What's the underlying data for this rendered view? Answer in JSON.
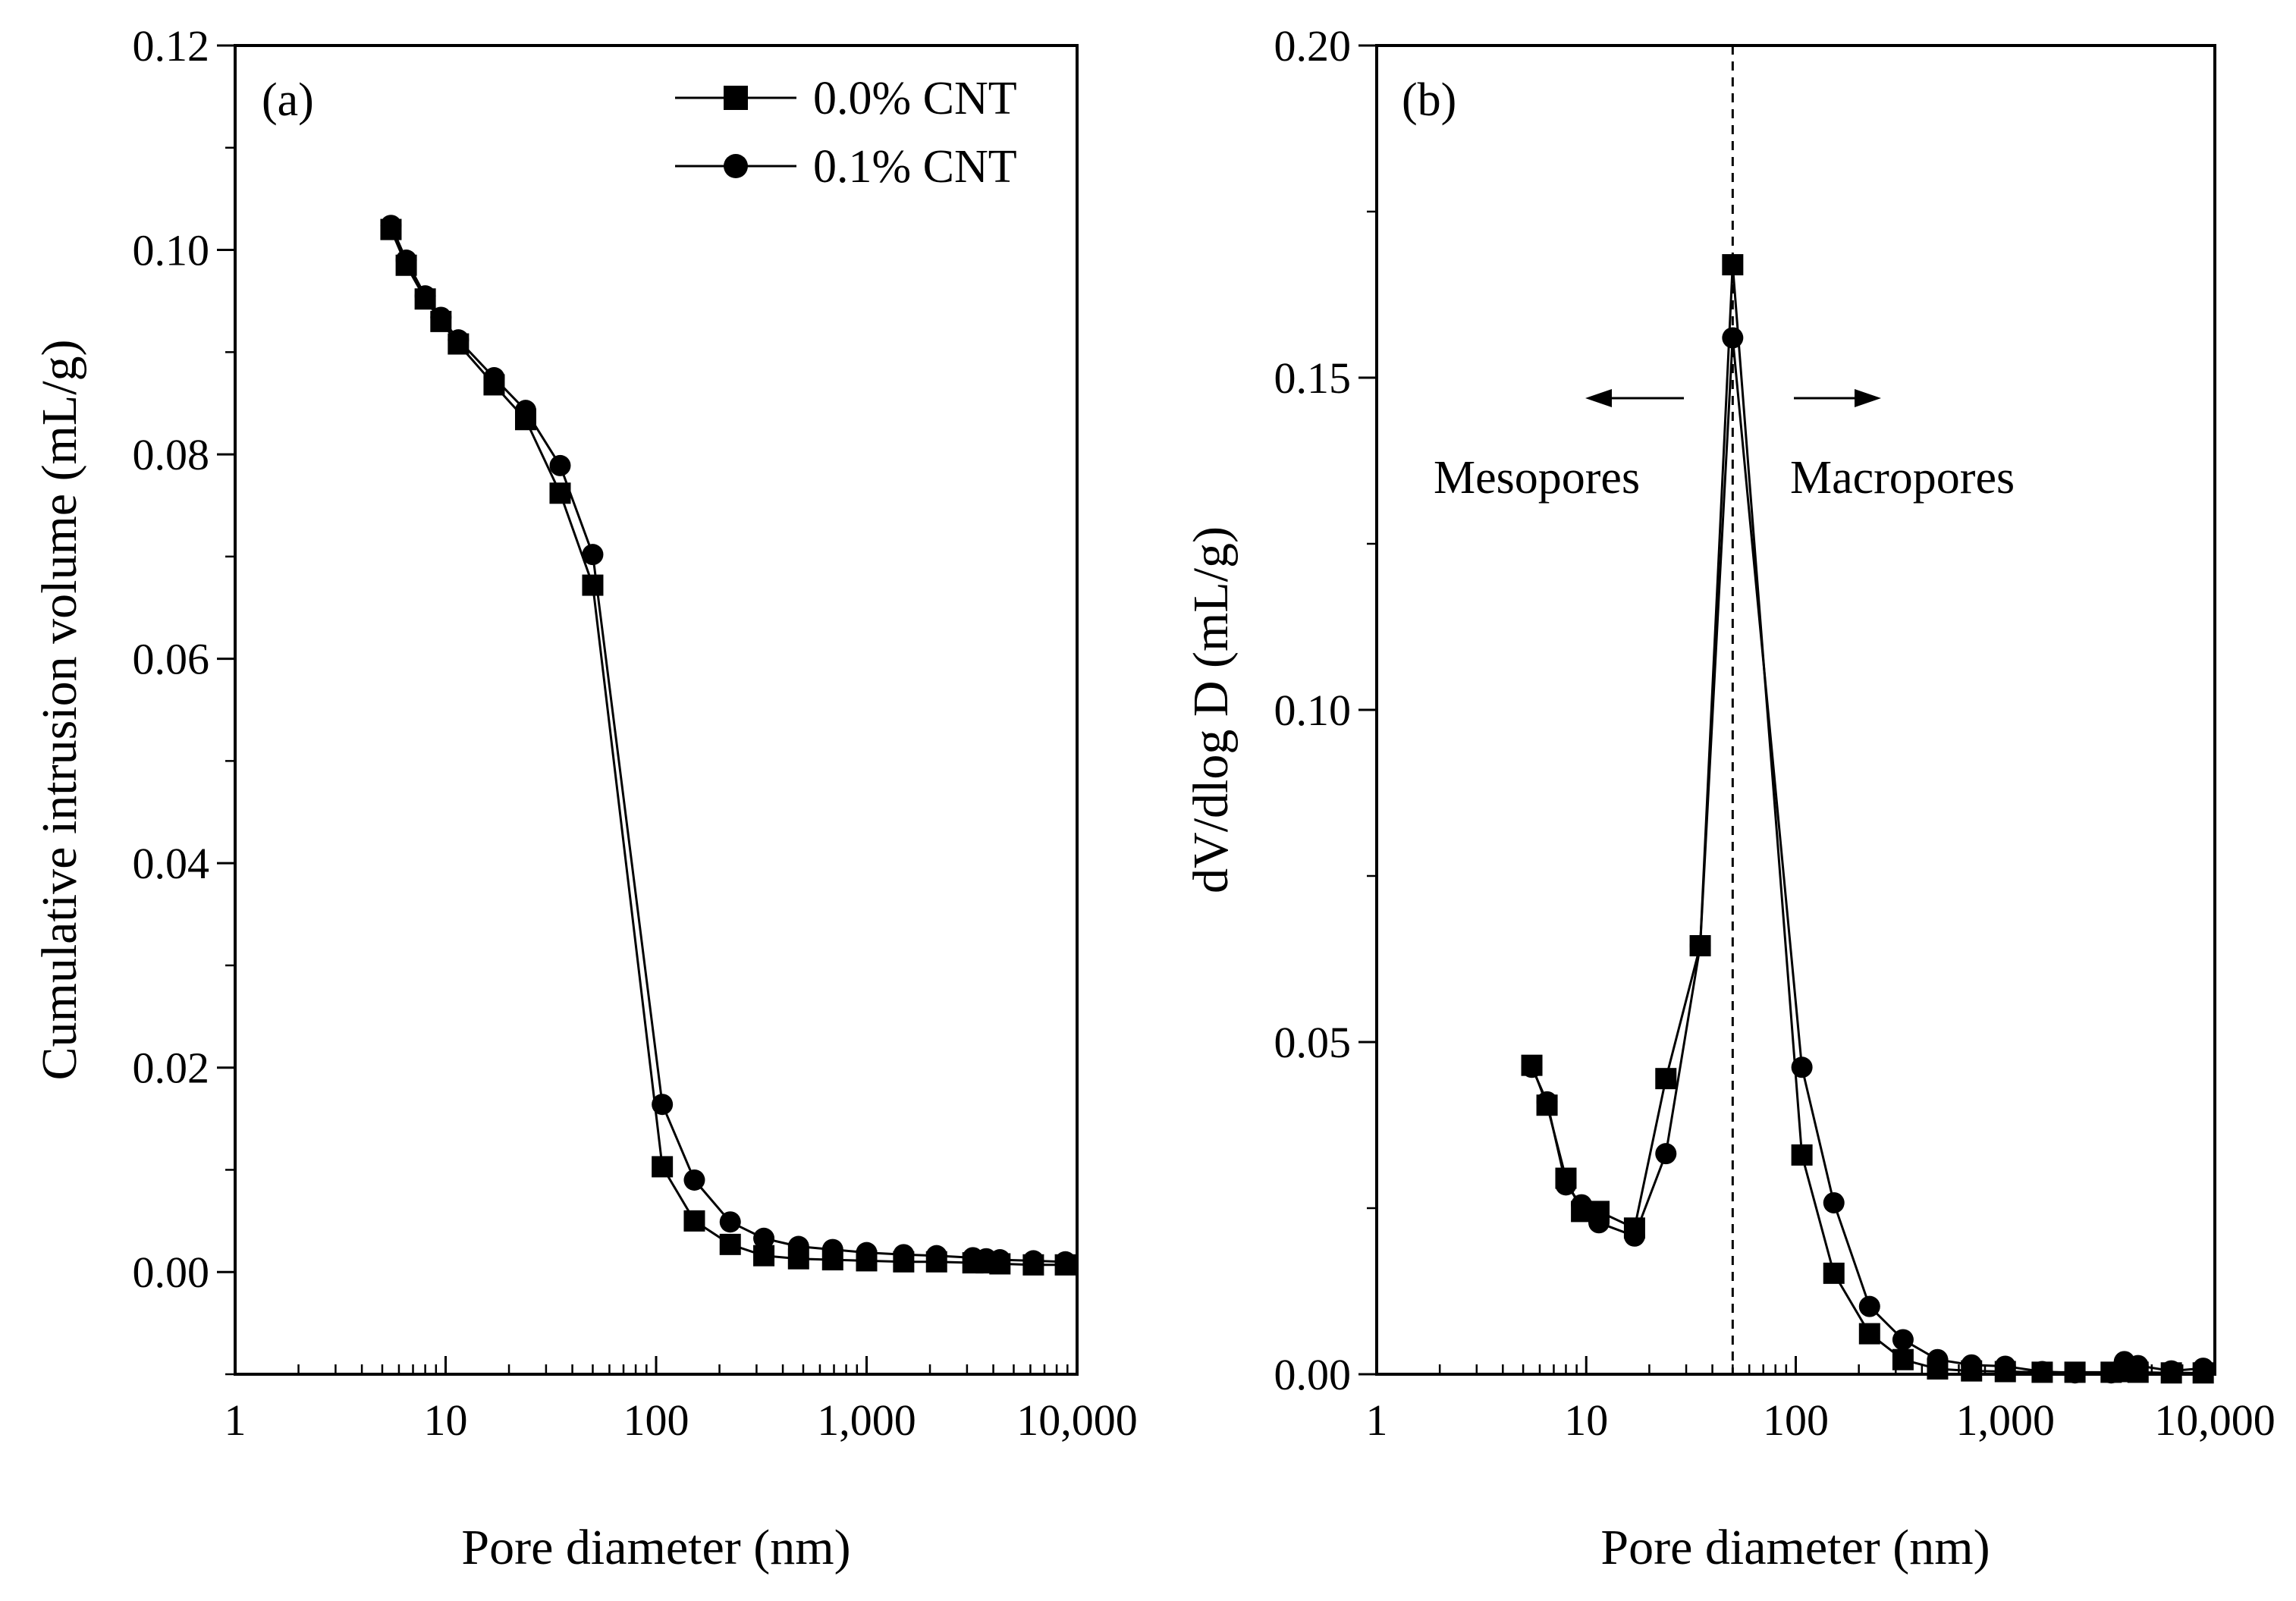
{
  "chart_data": [
    {
      "type": "line",
      "panel": "(a)",
      "xlabel": "Pore diameter (nm)",
      "ylabel": "Cumulative intrusion volume (mL/g)",
      "xscale": "log",
      "xlim": [
        1,
        10000
      ],
      "ylim": [
        -0.01,
        0.12
      ],
      "xticks": [
        1,
        10,
        100,
        1000,
        10000
      ],
      "xtick_labels": [
        "1",
        "10",
        "100",
        "1,000",
        "10,000"
      ],
      "yticks": [
        0.0,
        0.02,
        0.04,
        0.06,
        0.08,
        0.1,
        0.12
      ],
      "ytick_labels": [
        "0.00",
        "0.02",
        "0.04",
        "0.06",
        "0.08",
        "0.10",
        "0.12"
      ],
      "legend_position": "top-right",
      "series": [
        {
          "name": "0.0% CNT",
          "marker": "square",
          "x": [
            5.5,
            6.5,
            8,
            9.5,
            11.5,
            17,
            24,
            35,
            50,
            107,
            152,
            225,
            325,
            475,
            690,
            1000,
            1500,
            2150,
            3200,
            3700,
            4300,
            6200,
            8800
          ],
          "y": [
            0.102,
            0.0985,
            0.0952,
            0.093,
            0.0908,
            0.0868,
            0.0834,
            0.0762,
            0.0672,
            0.0103,
            0.005,
            0.0027,
            0.0016,
            0.0013,
            0.0012,
            0.0011,
            0.001,
            0.001,
            0.0009,
            0.0009,
            0.0008,
            0.0007,
            0.0007
          ]
        },
        {
          "name": "0.1% CNT",
          "marker": "circle",
          "x": [
            5.5,
            6.5,
            8,
            9.5,
            11.5,
            17,
            24,
            35,
            50,
            107,
            152,
            225,
            325,
            475,
            690,
            1000,
            1500,
            2150,
            3200,
            3700,
            4300,
            6200,
            8800
          ],
          "y": [
            0.1024,
            0.099,
            0.0955,
            0.0934,
            0.0912,
            0.0875,
            0.0843,
            0.0789,
            0.0702,
            0.0164,
            0.009,
            0.0049,
            0.0033,
            0.0025,
            0.0022,
            0.0019,
            0.0017,
            0.0016,
            0.0014,
            0.0013,
            0.0012,
            0.0011,
            0.001
          ]
        }
      ]
    },
    {
      "type": "line",
      "panel": "(b)",
      "xlabel": "Pore diameter (nm)",
      "ylabel": "dV/dlog D (mL/g)",
      "xscale": "log",
      "xlim": [
        1,
        10000
      ],
      "ylim": [
        0.0,
        0.2
      ],
      "xticks": [
        1,
        10,
        100,
        1000,
        10000
      ],
      "xtick_labels": [
        "1",
        "10",
        "100",
        "1,000",
        "10,000"
      ],
      "yticks": [
        0.0,
        0.05,
        0.1,
        0.15,
        0.2
      ],
      "ytick_labels": [
        "0.00",
        "0.05",
        "0.10",
        "0.15",
        "0.20"
      ],
      "reference_line_x": 50,
      "annotations": [
        {
          "text": "Mesopores",
          "arrow": "left"
        },
        {
          "text": "Macropores",
          "arrow": "right"
        }
      ],
      "series": [
        {
          "name": "0.0% CNT",
          "marker": "square",
          "x": [
            5.5,
            6.5,
            8,
            9.5,
            11.5,
            17,
            24,
            35,
            50,
            107,
            152,
            225,
            325,
            475,
            690,
            1000,
            1500,
            2150,
            3200,
            3700,
            4300,
            6200,
            8800
          ],
          "y": [
            0.0465,
            0.0405,
            0.0295,
            0.0245,
            0.0245,
            0.022,
            0.0445,
            0.0645,
            0.167,
            0.033,
            0.0152,
            0.0061,
            0.0022,
            0.0008,
            0.0005,
            0.0004,
            0.0003,
            0.0003,
            0.0003,
            0.0004,
            0.0003,
            0.0002,
            0.0002
          ]
        },
        {
          "name": "0.1% CNT",
          "marker": "circle",
          "x": [
            5.5,
            6.5,
            8,
            9.5,
            11.5,
            17,
            24,
            35,
            50,
            107,
            152,
            225,
            325,
            475,
            690,
            1000,
            1500,
            2150,
            3200,
            3700,
            4300,
            6200,
            8800
          ],
          "y": [
            0.0462,
            0.041,
            0.0285,
            0.0255,
            0.0228,
            0.0208,
            0.0332,
            0.0645,
            0.156,
            0.0462,
            0.0258,
            0.0102,
            0.0052,
            0.0022,
            0.0014,
            0.0012,
            0.0004,
            0.0002,
            0.0002,
            0.0019,
            0.0013,
            0.0005,
            0.0009
          ]
        }
      ]
    }
  ]
}
